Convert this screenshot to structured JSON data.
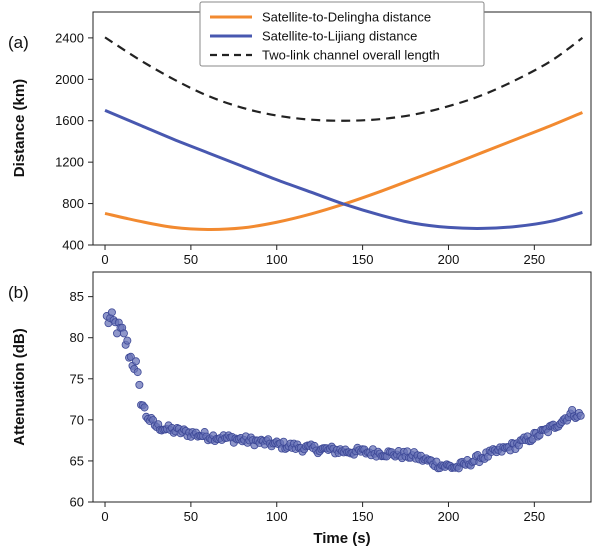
{
  "chart_data": [
    {
      "panel_label": "(a)",
      "type": "line",
      "xlabel": "",
      "ylabel": "Distance (km)",
      "xlim": [
        -7,
        283
      ],
      "ylim": [
        400,
        2650
      ],
      "xticks": [
        0,
        50,
        100,
        150,
        200,
        250
      ],
      "yticks": [
        400,
        800,
        1200,
        1600,
        2000,
        2400
      ],
      "grid": false,
      "legend_position": "top-center",
      "series": [
        {
          "name": "Satellite-to-Delingha distance",
          "color": "#f28a30",
          "dash": "solid",
          "x": [
            0,
            20,
            40,
            60,
            80,
            100,
            120,
            140,
            160,
            180,
            200,
            220,
            240,
            260,
            278
          ],
          "y": [
            705,
            630,
            570,
            550,
            565,
            620,
            700,
            800,
            915,
            1040,
            1165,
            1295,
            1425,
            1555,
            1680
          ]
        },
        {
          "name": "Satellite-to-Lijiang distance",
          "color": "#4858b0",
          "dash": "solid",
          "x": [
            0,
            20,
            40,
            60,
            80,
            100,
            120,
            140,
            160,
            180,
            200,
            220,
            240,
            260,
            278
          ],
          "y": [
            1700,
            1560,
            1420,
            1290,
            1160,
            1030,
            910,
            790,
            690,
            610,
            570,
            560,
            580,
            630,
            715
          ]
        },
        {
          "name": "Two-link channel overall length",
          "color": "#222222",
          "dash": "dashed",
          "x": [
            0,
            20,
            40,
            60,
            80,
            100,
            120,
            140,
            160,
            180,
            200,
            220,
            240,
            260,
            278
          ],
          "y": [
            2405,
            2190,
            2000,
            1840,
            1725,
            1650,
            1610,
            1600,
            1615,
            1660,
            1740,
            1850,
            2000,
            2180,
            2400
          ]
        }
      ]
    },
    {
      "panel_label": "(b)",
      "type": "scatter",
      "xlabel": "Time (s)",
      "ylabel": "Attenuation (dB)",
      "xlim": [
        -7,
        283
      ],
      "ylim": [
        60,
        88
      ],
      "xticks": [
        0,
        50,
        100,
        150,
        200,
        250
      ],
      "yticks": [
        60,
        65,
        70,
        75,
        80,
        85
      ],
      "grid": false,
      "marker_color": "#6a74b8",
      "x_start": 1,
      "x_step": 1,
      "key_points": {
        "x": [
          1,
          4,
          8,
          10,
          13,
          15,
          18,
          20,
          23,
          26,
          30,
          40,
          60,
          80,
          100,
          120,
          140,
          160,
          180,
          195,
          205,
          220,
          240,
          260,
          272,
          277
        ],
        "y": [
          82.3,
          82,
          81,
          80.5,
          79,
          77.5,
          76.5,
          73.5,
          71,
          70,
          69.2,
          68.7,
          68,
          67.6,
          67,
          66.5,
          66.2,
          66,
          65.6,
          64.5,
          64.2,
          65.5,
          67,
          69,
          70.8,
          70.5
        ]
      },
      "noise_amplitude": 0.5
    }
  ],
  "labels": {
    "panel_a": "(a)",
    "panel_b": "(b)",
    "ylabel_a": "Distance (km)",
    "ylabel_b": "Attenuation (dB)",
    "xlabel_b": "Time (s)"
  }
}
